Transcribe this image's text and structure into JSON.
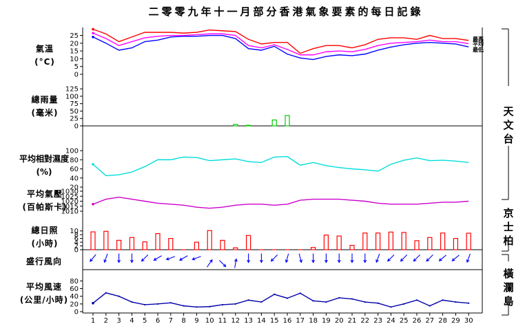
{
  "title": "二零零九年十一月部分香港氣象要素的每日記錄",
  "panels": [
    {
      "label1": "氣溫",
      "label2": "(°C)"
    },
    {
      "label1": "總雨量",
      "label2": "(毫米)"
    },
    {
      "label1": "平均相對濕度",
      "label2": "(%)"
    },
    {
      "label1": "平均氣壓",
      "label2": "(百帕斯卡)"
    },
    {
      "label1": "總日照",
      "label2": "(小時)"
    },
    {
      "label1": "盛行風向",
      "label2": ""
    },
    {
      "label1": "平均風速",
      "label2": "(公里/小時)"
    }
  ],
  "stations": {
    "observatory": "天文台",
    "kings_park": "京士柏",
    "waglan": "橫瀾島"
  },
  "colors": {
    "max_temp": "#ff0000",
    "mean_temp": "#ff00ff",
    "min_temp": "#0000ff",
    "rain": "#00cc00",
    "humidity": "#00dddd",
    "pressure": "#cc00cc",
    "sunshine": "#ff0000",
    "wind_dir": "#0000ff",
    "wind_speed": "#0000aa"
  },
  "chart_data": [
    {
      "type": "line",
      "name": "temperature",
      "y_ticks": [
        "0",
        "5",
        "10",
        "15",
        "20",
        "25"
      ],
      "ylim": [
        0,
        27
      ],
      "legend": [
        "最高",
        "平均",
        "最低"
      ],
      "x": [
        1,
        2,
        3,
        4,
        5,
        6,
        7,
        8,
        9,
        10,
        11,
        12,
        13,
        14,
        15,
        16,
        17,
        18,
        19,
        20,
        21,
        22,
        23,
        24,
        25,
        26,
        27,
        28,
        29,
        30
      ],
      "series": [
        {
          "name": "最高",
          "values": [
            29,
            26,
            21,
            24,
            27,
            27,
            27,
            26.5,
            27,
            28.5,
            28,
            27.5,
            22.5,
            19.5,
            20.5,
            20.5,
            13.5,
            16.5,
            18.5,
            18.5,
            17,
            19,
            22.5,
            23.5,
            23.5,
            22.5,
            25,
            23,
            23,
            21.8
          ]
        },
        {
          "name": "平均",
          "values": [
            26.5,
            23,
            18.5,
            21,
            23.5,
            24.5,
            25,
            25,
            25.5,
            26,
            26,
            25,
            18.5,
            17,
            19,
            16,
            12.5,
            12.5,
            14.5,
            15,
            14.5,
            16,
            18.5,
            20,
            20.5,
            21,
            22,
            21,
            21,
            19.7
          ]
        },
        {
          "name": "最低",
          "values": [
            24,
            20,
            15.5,
            17,
            21,
            22,
            24,
            24.5,
            24.5,
            25,
            25,
            23,
            16.5,
            15.5,
            18,
            13,
            10.5,
            9.5,
            11.5,
            12.5,
            12,
            13,
            15.5,
            17.5,
            19,
            20,
            20.5,
            20,
            19.5,
            17.6
          ]
        }
      ]
    },
    {
      "type": "bar",
      "name": "rainfall",
      "y_ticks": [
        "0",
        "25",
        "50",
        "75",
        "100",
        "125"
      ],
      "ylim": [
        0,
        130
      ],
      "x": [
        1,
        2,
        3,
        4,
        5,
        6,
        7,
        8,
        9,
        10,
        11,
        12,
        13,
        14,
        15,
        16,
        17,
        18,
        19,
        20,
        21,
        22,
        23,
        24,
        25,
        26,
        27,
        28,
        29,
        30
      ],
      "values": [
        0,
        0,
        0,
        0,
        0,
        0,
        0,
        0,
        0,
        0,
        0,
        5,
        2,
        0,
        20,
        35,
        0,
        0,
        0,
        0,
        0,
        0,
        0,
        0,
        0,
        0,
        0,
        0,
        0,
        0
      ]
    },
    {
      "type": "line",
      "name": "humidity",
      "y_ticks": [
        "20",
        "40",
        "60",
        "80",
        "100"
      ],
      "ylim": [
        20,
        100
      ],
      "x": [
        1,
        2,
        3,
        4,
        5,
        6,
        7,
        8,
        9,
        10,
        11,
        12,
        13,
        14,
        15,
        16,
        17,
        18,
        19,
        20,
        21,
        22,
        23,
        24,
        25,
        26,
        27,
        28,
        29,
        30
      ],
      "values": [
        70,
        45,
        47,
        53,
        65,
        80,
        80,
        86,
        85,
        78,
        80,
        82,
        76,
        74,
        86,
        87,
        68,
        74,
        67,
        63,
        60,
        58,
        55,
        70,
        79,
        84,
        78,
        79,
        77,
        74
      ]
    },
    {
      "type": "line",
      "name": "pressure",
      "y_ticks": [
        "1010",
        "1015",
        "1020",
        "1025",
        "1030"
      ],
      "ylim": [
        1010,
        1030
      ],
      "x": [
        1,
        2,
        3,
        4,
        5,
        6,
        7,
        8,
        9,
        10,
        11,
        12,
        13,
        14,
        15,
        16,
        17,
        18,
        19,
        20,
        21,
        22,
        23,
        24,
        25,
        26,
        27,
        28,
        29,
        30
      ],
      "values": [
        1017,
        1022,
        1024,
        1022,
        1020,
        1018,
        1017,
        1016,
        1014,
        1013,
        1014,
        1016,
        1017,
        1017,
        1016,
        1017,
        1021,
        1022,
        1022,
        1022,
        1021,
        1020,
        1018,
        1017,
        1017,
        1017,
        1018,
        1019,
        1019,
        1020
      ]
    },
    {
      "type": "bar",
      "name": "sunshine",
      "y_ticks": [
        "0",
        "2",
        "4",
        "6",
        "8",
        "10"
      ],
      "ylim": [
        0,
        11
      ],
      "x": [
        1,
        2,
        3,
        4,
        5,
        6,
        7,
        8,
        9,
        10,
        11,
        12,
        13,
        14,
        15,
        16,
        17,
        18,
        19,
        20,
        21,
        22,
        23,
        24,
        25,
        26,
        27,
        28,
        29,
        30
      ],
      "values": [
        9.5,
        9.8,
        5,
        6.5,
        4.2,
        8.6,
        6,
        0,
        4,
        10.2,
        5,
        1,
        7.6,
        0,
        0,
        0,
        0,
        1.2,
        7.8,
        7.3,
        2.3,
        8.9,
        8.9,
        9.4,
        9.2,
        4.8,
        6.5,
        8.9,
        6,
        8.8
      ]
    },
    {
      "type": "vector",
      "name": "prevailing_wind_direction",
      "x": [
        1,
        2,
        3,
        4,
        5,
        6,
        7,
        8,
        9,
        10,
        11,
        12,
        13,
        14,
        15,
        16,
        17,
        18,
        19,
        20,
        21,
        22,
        23,
        24,
        25,
        26,
        27,
        28,
        29,
        30
      ],
      "blowing_toward_deg": [
        220,
        200,
        180,
        180,
        225,
        240,
        250,
        240,
        250,
        35,
        135,
        10,
        180,
        180,
        225,
        195,
        165,
        180,
        180,
        180,
        180,
        180,
        200,
        225,
        225,
        225,
        225,
        230,
        230,
        200
      ]
    },
    {
      "type": "line",
      "name": "wind_speed",
      "y_ticks": [
        "0",
        "20",
        "40",
        "60",
        "80"
      ],
      "ylim": [
        0,
        95
      ],
      "x": [
        1,
        2,
        3,
        4,
        5,
        6,
        7,
        8,
        9,
        10,
        11,
        12,
        13,
        14,
        15,
        16,
        17,
        18,
        19,
        20,
        21,
        22,
        23,
        24,
        25,
        26,
        27,
        28,
        29,
        30
      ],
      "values": [
        22,
        49,
        40,
        25,
        18,
        20,
        23,
        15,
        12,
        13,
        18,
        20,
        30,
        25,
        45,
        35,
        48,
        28,
        25,
        36,
        33,
        25,
        22,
        12,
        20,
        30,
        15,
        30,
        25,
        22
      ]
    }
  ],
  "x_tick_labels": [
    "1",
    "2",
    "3",
    "4",
    "5",
    "6",
    "7",
    "8",
    "9",
    "10",
    "11",
    "12",
    "13",
    "14",
    "15",
    "16",
    "17",
    "18",
    "19",
    "20",
    "21",
    "22",
    "23",
    "24",
    "25",
    "26",
    "27",
    "28",
    "29",
    "30"
  ]
}
